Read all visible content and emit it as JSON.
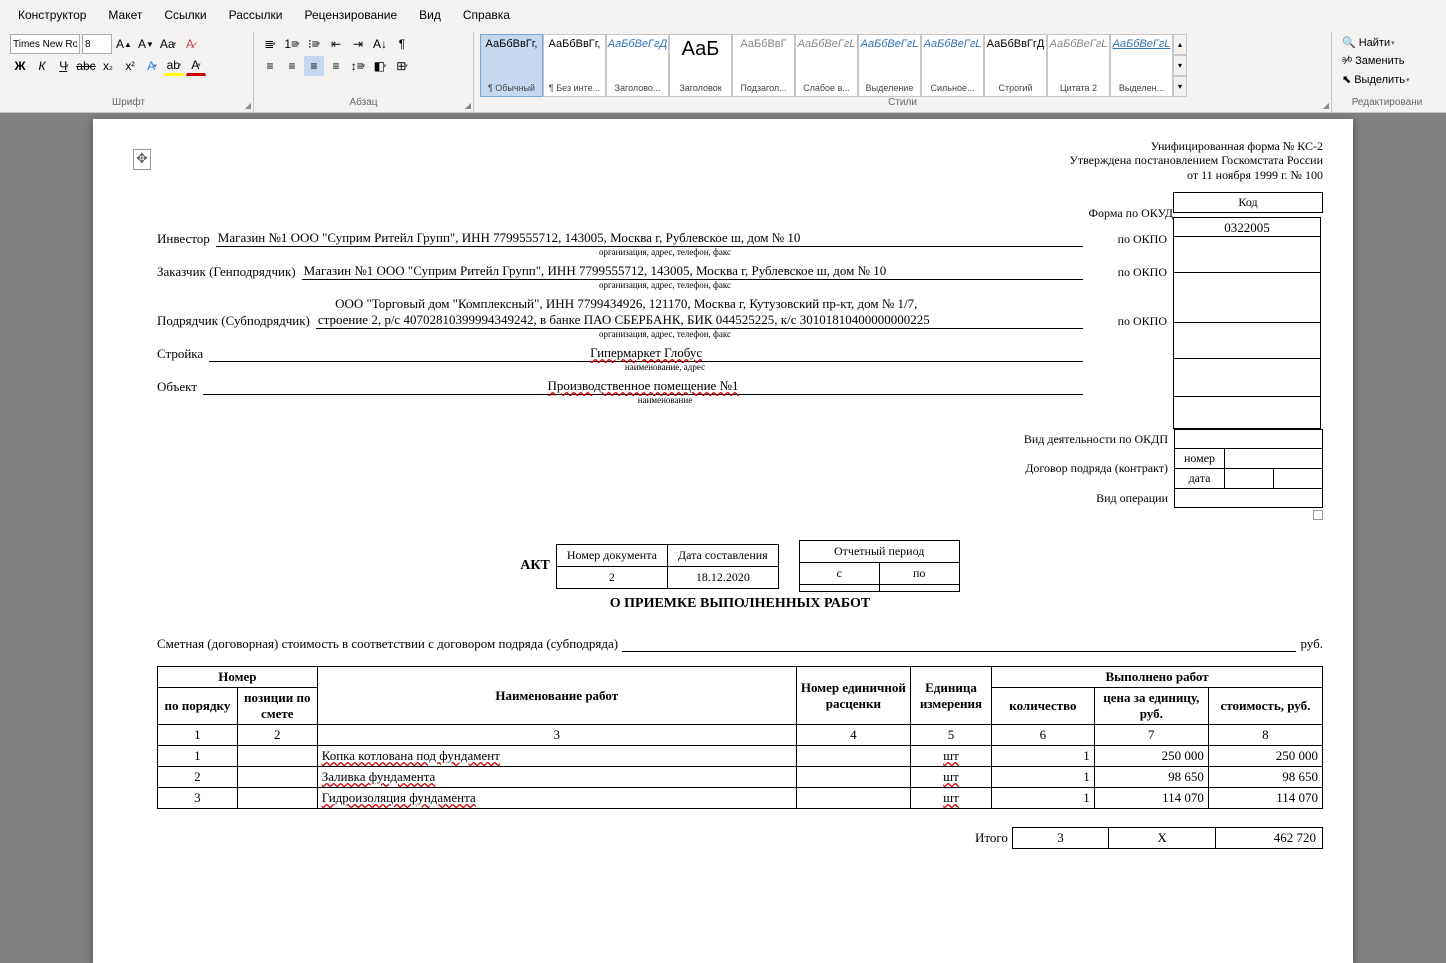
{
  "tabs": [
    "Конструктор",
    "Макет",
    "Ссылки",
    "Рассылки",
    "Рецензирование",
    "Вид",
    "Справка"
  ],
  "font": {
    "name": "Times New Ro",
    "size": "8"
  },
  "groups": {
    "font": "Шрифт",
    "para": "Абзац",
    "styles": "Стили",
    "edit": "Редактировани"
  },
  "styles": [
    {
      "preview": "АаБбВвГг,",
      "name": "¶ Обычный",
      "color": "#000",
      "active": true
    },
    {
      "preview": "АаБбВвГг,",
      "name": "¶ Без инте...",
      "color": "#000"
    },
    {
      "preview": "АаБбВеГгД",
      "name": "Заголово...",
      "color": "#2e74b5",
      "italic": true
    },
    {
      "preview": "АаБ",
      "name": "Заголовок",
      "color": "#000",
      "big": true
    },
    {
      "preview": "АаБбВвГ",
      "name": "Подзагол...",
      "color": "#888"
    },
    {
      "preview": "АаБбВеГгL",
      "name": "Слабое в...",
      "color": "#888",
      "italic": true
    },
    {
      "preview": "АаБбВеГгL",
      "name": "Выделение",
      "color": "#2e74b5",
      "italic": true
    },
    {
      "preview": "АаБбВеГгL",
      "name": "Сильное...",
      "color": "#2e74b5",
      "italic": true
    },
    {
      "preview": "АаБбВвГгД",
      "name": "Строгий",
      "color": "#000"
    },
    {
      "preview": "АаБбВеГгL",
      "name": "Цитата 2",
      "color": "#888",
      "italic": true
    },
    {
      "preview": "АаБбВеГгL",
      "name": "Выделен...",
      "color": "#2e74b5",
      "underline": true,
      "italic": true
    }
  ],
  "edit": {
    "find": "Найти",
    "replace": "Заменить",
    "select": "Выделить"
  },
  "doc": {
    "header": [
      "Унифицированная форма № КС-2",
      "Утверждена постановлением Госкомстата России",
      "от 11 ноября 1999 г. № 100"
    ],
    "code_label": "Код",
    "okud_label": "Форма по ОКУД",
    "okud_value": "0322005",
    "okpo_label": "по ОКПО",
    "investor_label": "Инвестор",
    "investor_value": "Магазин №1 ООО \"Суприм Ритейл Групп\", ИНН 7799555712, 143005, Москва г, Рублевское ш, дом № 10",
    "customer_label": "Заказчик (Генподрядчик)",
    "customer_value": "Магазин №1 ООО \"Суприм Ритейл Групп\", ИНН 7799555712, 143005, Москва г, Рублевское ш, дом № 10",
    "contractor_label": "Подрядчик (Субподрядчик)",
    "contractor_value_l1": "ООО \"Торговый дом \"Комплексный\", ИНН 7799434926, 121170, Москва г, Кутузовский пр-кт, дом № 1/7,",
    "contractor_value_l2": "строение 2, р/с 40702810399994349242, в банке ПАО СБЕРБАНК, БИК 044525225, к/с 30101810400000000225",
    "org_note": "организация, адрес, телефон, факс",
    "site_label": "Стройка",
    "site_value": "Гипермаркет Глобус",
    "site_note": "наименование, адрес",
    "object_label": "Объект",
    "object_value": "Производственное помещение №1",
    "object_note": "наименование",
    "okdp_label": "Вид деятельности по ОКДП",
    "contract_label": "Договор подряда (контракт)",
    "contract_num": "номер",
    "contract_date": "дата",
    "optype_label": "Вид операции",
    "docnum_h": "Номер документа",
    "docdate_h": "Дата составления",
    "period_h": "Отчетный период",
    "period_from": "с",
    "period_to": "по",
    "docnum": "2",
    "docdate": "18.12.2020",
    "akt": "АКТ",
    "title": "О ПРИЕМКЕ ВЫПОЛНЕННЫХ РАБОТ",
    "smeta": "Сметная (договорная) стоимость в соответствии с договором подряда (субподряда)",
    "rub": "руб.",
    "th": {
      "num": "Номер",
      "order": "по порядку",
      "pos": "позиции по смете",
      "work": "Наименование работ",
      "rate": "Номер единичной расценки",
      "unit": "Единица измерения",
      "done": "Выполнено работ",
      "qty": "количество",
      "price": "цена за единицу, руб.",
      "cost": "стоимость, руб."
    },
    "cols": [
      "1",
      "2",
      "3",
      "4",
      "5",
      "6",
      "7",
      "8"
    ],
    "rows": [
      {
        "n": "1",
        "p": "",
        "name": "Копка котлована под фундамент",
        "rate": "",
        "unit": "шт",
        "qty": "1",
        "price": "250 000",
        "cost": "250 000"
      },
      {
        "n": "2",
        "p": "",
        "name": "Заливка фундамента",
        "rate": "",
        "unit": "шт",
        "qty": "1",
        "price": "98 650",
        "cost": "98 650"
      },
      {
        "n": "3",
        "p": "",
        "name": "Гидроизоляция фундамента",
        "rate": "",
        "unit": "шт",
        "qty": "1",
        "price": "114 070",
        "cost": "114 070"
      }
    ],
    "total_label": "Итого",
    "total_qty": "3",
    "total_x": "X",
    "total_cost": "462 720"
  }
}
